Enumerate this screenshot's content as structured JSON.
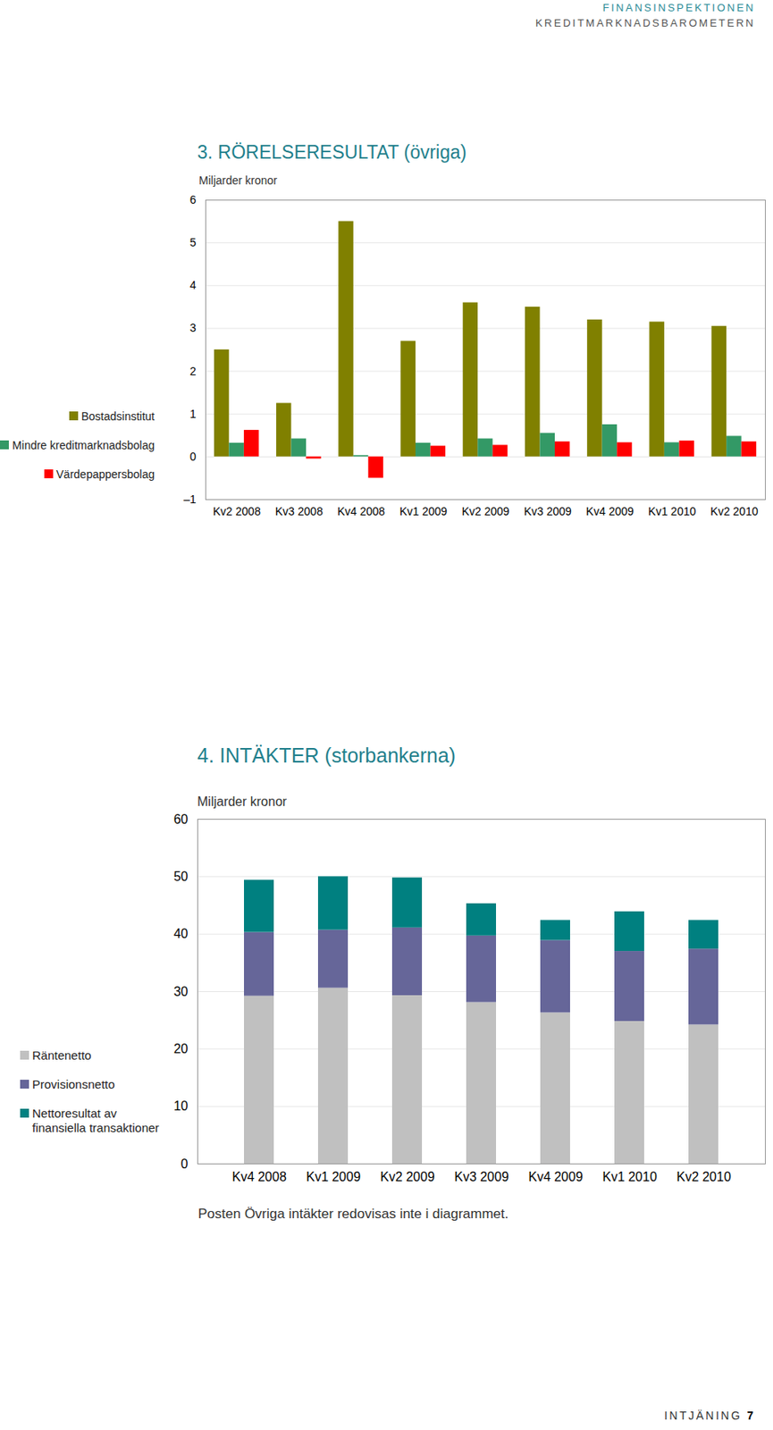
{
  "header": {
    "organisation": "FINANSINSPEKTIONEN",
    "publication": "KREDITMARKNADSBAROMETERN"
  },
  "footer": {
    "section": "INTJÄNING",
    "page": "7"
  },
  "chart_data": [
    {
      "type": "bar",
      "title": "3. RÖRELSERESULTAT (övriga)",
      "subtitle": "Miljarder kronor",
      "stacked": false,
      "grid": true,
      "legend": "left",
      "categories": [
        "Kv2 2008",
        "Kv3 2008",
        "Kv4 2008",
        "Kv1 2009",
        "Kv2 2009",
        "Kv3 2009",
        "Kv4 2009",
        "Kv1 2010",
        "Kv2 2010"
      ],
      "series": [
        {
          "name": "Bostadsinstitut",
          "color": "#808000",
          "values": [
            2.5,
            1.25,
            5.5,
            2.7,
            3.6,
            3.5,
            3.2,
            3.15,
            3.05
          ]
        },
        {
          "name": "Mindre kreditmarknadsbolag",
          "color": "#339966",
          "values": [
            0.32,
            0.42,
            0.03,
            0.32,
            0.42,
            0.55,
            0.75,
            0.33,
            0.48
          ]
        },
        {
          "name": "Värdepappersbolag",
          "color": "#ff0000",
          "values": [
            0.62,
            -0.05,
            -0.5,
            0.25,
            0.27,
            0.35,
            0.33,
            0.37,
            0.35
          ]
        }
      ],
      "ylim": [
        -1,
        6
      ],
      "yticks": [
        {
          "value": -1,
          "label": "–1"
        },
        0,
        1,
        2,
        3,
        4,
        5,
        6
      ]
    },
    {
      "type": "bar",
      "title": "4. INTÄKTER (storbankerna)",
      "subtitle": "Miljarder kronor",
      "stacked": true,
      "grid": true,
      "legend": "left",
      "categories": [
        "Kv4 2008",
        "Kv1 2009",
        "Kv2 2009",
        "Kv3 2009",
        "Kv4 2009",
        "Kv1 2010",
        "Kv2 2010"
      ],
      "series": [
        {
          "name": "Räntenetto",
          "color": "#c0c0c0",
          "values": [
            29.2,
            30.6,
            29.3,
            28.1,
            26.3,
            24.8,
            24.2
          ]
        },
        {
          "name": "Provisionsnetto",
          "color": "#666699",
          "values": [
            11.1,
            10.1,
            11.8,
            11.6,
            12.6,
            12.2,
            13.2
          ]
        },
        {
          "name": "Nettoresultat av finansiella transaktioner",
          "color": "#008080",
          "values": [
            9.1,
            9.3,
            8.7,
            5.6,
            3.5,
            6.9,
            5.0
          ]
        }
      ],
      "ylim": [
        0,
        60
      ],
      "yticks": [
        0,
        10,
        20,
        30,
        40,
        50,
        60
      ],
      "annotations": [
        "Posten Övriga intäkter redovisas inte i diagrammet."
      ]
    }
  ]
}
